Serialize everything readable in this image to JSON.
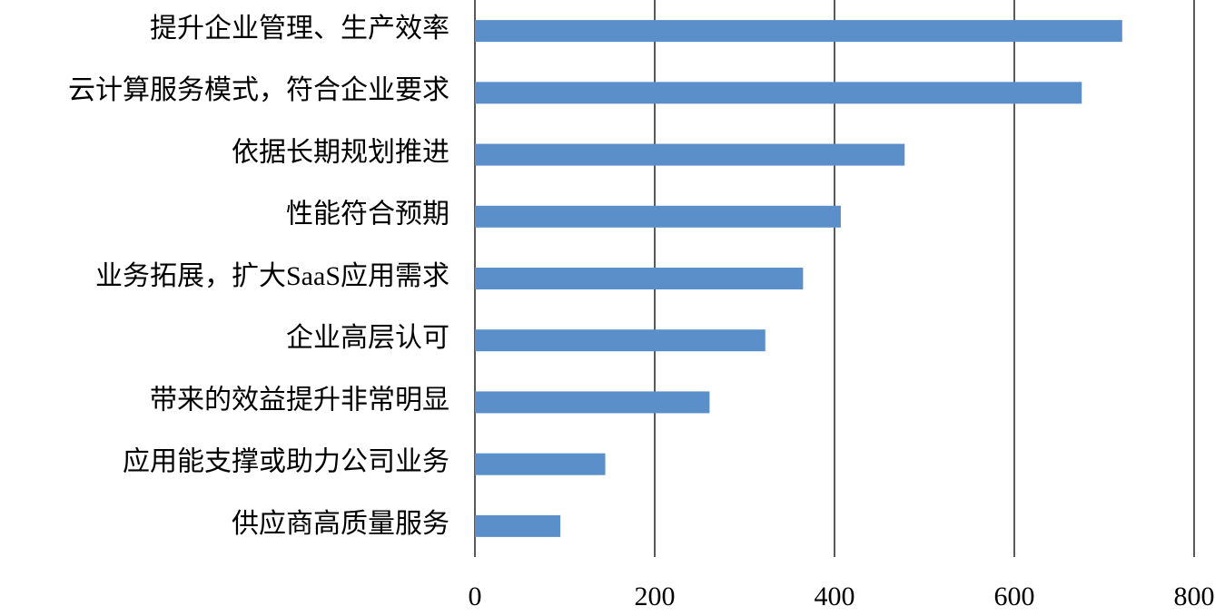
{
  "chart_data": {
    "type": "bar",
    "orientation": "horizontal",
    "categories": [
      "提升企业管理、生产效率",
      "云计算服务模式，符合企业要求",
      "依据长期规划推进",
      "性能符合预期",
      "业务拓展，扩大SaaS应用需求",
      "企业高层认可",
      "带来的效益提升非常明显",
      "应用能支撑或助力公司业务",
      "供应商高质量服务"
    ],
    "values": [
      720,
      675,
      478,
      407,
      365,
      323,
      261,
      145,
      95
    ],
    "color": "#5b8fc9",
    "xlim": [
      0,
      800
    ],
    "xticks": [
      0,
      200,
      400,
      600,
      800
    ],
    "grid": true
  }
}
